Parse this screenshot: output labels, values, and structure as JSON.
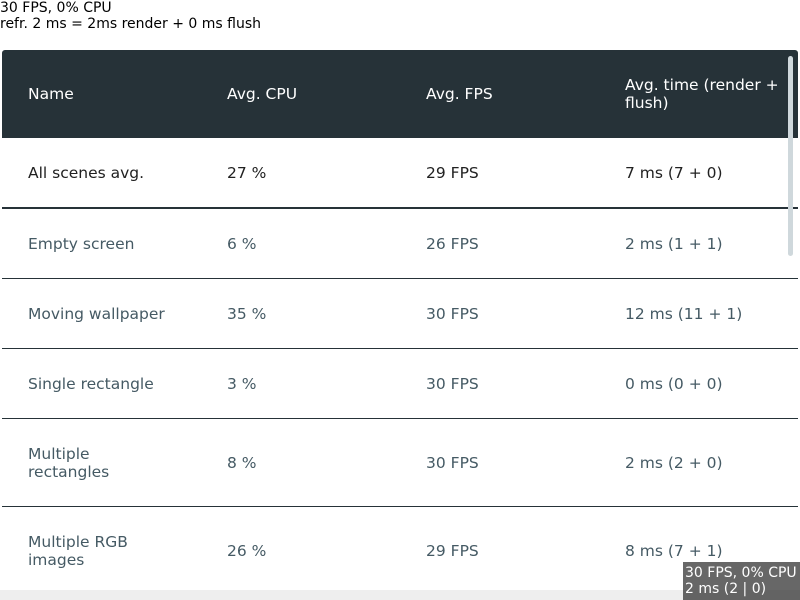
{
  "top_info": {
    "line1": "30 FPS, 0% CPU",
    "line2": "refr. 2 ms = 2ms render + 0 ms flush"
  },
  "table": {
    "headers": [
      "Name",
      "Avg. CPU",
      "Avg. FPS",
      "Avg. time (render + flush)"
    ],
    "rows": [
      {
        "name": "All scenes avg.",
        "cpu": "27 %",
        "fps": "29 FPS",
        "time": "7 ms (7 + 0)"
      },
      {
        "name": "Empty screen",
        "cpu": "6 %",
        "fps": "26 FPS",
        "time": "2 ms (1 + 1)"
      },
      {
        "name": "Moving wallpaper",
        "cpu": "35 %",
        "fps": "30 FPS",
        "time": "12 ms (11 + 1)"
      },
      {
        "name": "Single rectangle",
        "cpu": "3 %",
        "fps": "30 FPS",
        "time": "0 ms (0 + 0)"
      },
      {
        "name": "Multiple rectangles",
        "cpu": "8 %",
        "fps": "30 FPS",
        "time": "2 ms (2 + 0)"
      },
      {
        "name": "Multiple RGB images",
        "cpu": "26 %",
        "fps": "29 FPS",
        "time": "8 ms (7 + 1)"
      }
    ]
  },
  "perf_overlay": {
    "line1": "30 FPS, 0% CPU",
    "line2": "2 ms (2 | 0)"
  },
  "colors": {
    "header_bg": "#263238",
    "header_text": "#ffffff",
    "row_text": "#455a64",
    "avg_text": "#212121"
  }
}
